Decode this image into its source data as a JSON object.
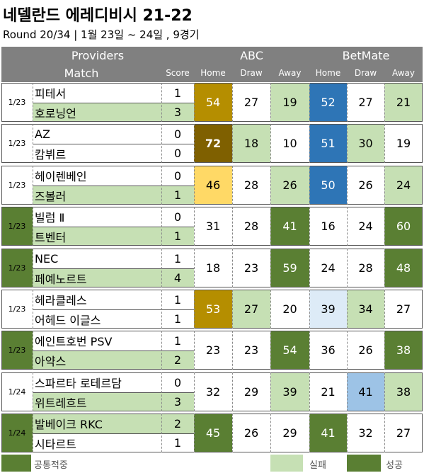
{
  "title": "네델란드 에레디비시 21-22",
  "subtitle": "Round 20/34 | 1월 23일 ~ 24일 , 9경기",
  "colors": {
    "success": "#5a7f33",
    "fail": "#c6e0b4",
    "header": "#808080",
    "goldDark": "#b58e00",
    "brownDark": "#7f6000",
    "gold": "#ffd966",
    "blue": "#2e75b6",
    "blueLight": "#9dc3e6",
    "blueLighter": "#ddebf7"
  },
  "header": {
    "providers": "Providers",
    "match": "Match",
    "score": "Score",
    "abc": "ABC",
    "betmate": "BetMate",
    "home": "Home",
    "draw": "Draw",
    "away": "Away"
  },
  "matches": [
    {
      "date": "1/23",
      "dateStyle": "none",
      "home": "피테서",
      "away": "호로닝언",
      "homeScore": "1",
      "awayScore": "3",
      "homeTeamStyle": "none",
      "awayTeamStyle": "fail",
      "abc": [
        {
          "v": "54",
          "s": "goldDark"
        },
        {
          "v": "27",
          "s": "none"
        },
        {
          "v": "19",
          "s": "fail"
        }
      ],
      "bm": [
        {
          "v": "52",
          "s": "blue"
        },
        {
          "v": "27",
          "s": "none"
        },
        {
          "v": "21",
          "s": "fail"
        }
      ]
    },
    {
      "date": "1/23",
      "dateStyle": "none",
      "home": "AZ",
      "away": "캄뷔르",
      "homeScore": "0",
      "awayScore": "0",
      "homeTeamStyle": "none",
      "awayTeamStyle": "none",
      "abc": [
        {
          "v": "72",
          "s": "brownDark"
        },
        {
          "v": "18",
          "s": "fail"
        },
        {
          "v": "10",
          "s": "none"
        }
      ],
      "bm": [
        {
          "v": "51",
          "s": "blue"
        },
        {
          "v": "30",
          "s": "fail"
        },
        {
          "v": "19",
          "s": "none"
        }
      ]
    },
    {
      "date": "1/23",
      "dateStyle": "none",
      "home": "헤이렌베인",
      "away": "즈볼러",
      "homeScore": "0",
      "awayScore": "1",
      "homeTeamStyle": "none",
      "awayTeamStyle": "fail",
      "abc": [
        {
          "v": "46",
          "s": "gold"
        },
        {
          "v": "28",
          "s": "none"
        },
        {
          "v": "26",
          "s": "fail"
        }
      ],
      "bm": [
        {
          "v": "50",
          "s": "blue"
        },
        {
          "v": "26",
          "s": "none"
        },
        {
          "v": "24",
          "s": "fail"
        }
      ]
    },
    {
      "date": "1/23",
      "dateStyle": "success",
      "home": "빌럼 Ⅱ",
      "away": "트벤터",
      "homeScore": "0",
      "awayScore": "1",
      "homeTeamStyle": "none",
      "awayTeamStyle": "fail",
      "abc": [
        {
          "v": "31",
          "s": "none"
        },
        {
          "v": "28",
          "s": "none"
        },
        {
          "v": "41",
          "s": "success"
        }
      ],
      "bm": [
        {
          "v": "16",
          "s": "none"
        },
        {
          "v": "24",
          "s": "none"
        },
        {
          "v": "60",
          "s": "success"
        }
      ]
    },
    {
      "date": "1/23",
      "dateStyle": "success",
      "home": "NEC",
      "away": "페예노르트",
      "homeScore": "1",
      "awayScore": "4",
      "homeTeamStyle": "none",
      "awayTeamStyle": "fail",
      "abc": [
        {
          "v": "18",
          "s": "none"
        },
        {
          "v": "23",
          "s": "none"
        },
        {
          "v": "59",
          "s": "success"
        }
      ],
      "bm": [
        {
          "v": "24",
          "s": "none"
        },
        {
          "v": "28",
          "s": "none"
        },
        {
          "v": "48",
          "s": "success"
        }
      ]
    },
    {
      "date": "1/23",
      "dateStyle": "none",
      "home": "헤라클레스",
      "away": "어헤드 이글스",
      "homeScore": "1",
      "awayScore": "1",
      "homeTeamStyle": "none",
      "awayTeamStyle": "none",
      "abc": [
        {
          "v": "53",
          "s": "goldDark"
        },
        {
          "v": "27",
          "s": "fail"
        },
        {
          "v": "20",
          "s": "none"
        }
      ],
      "bm": [
        {
          "v": "39",
          "s": "blueLighter"
        },
        {
          "v": "34",
          "s": "fail"
        },
        {
          "v": "27",
          "s": "none"
        }
      ]
    },
    {
      "date": "1/23",
      "dateStyle": "success",
      "home": "에인트호번 PSV",
      "away": "아약스",
      "homeScore": "1",
      "awayScore": "2",
      "homeTeamStyle": "none",
      "awayTeamStyle": "fail",
      "abc": [
        {
          "v": "23",
          "s": "none"
        },
        {
          "v": "23",
          "s": "none"
        },
        {
          "v": "54",
          "s": "success"
        }
      ],
      "bm": [
        {
          "v": "36",
          "s": "none"
        },
        {
          "v": "26",
          "s": "none"
        },
        {
          "v": "38",
          "s": "success"
        }
      ]
    },
    {
      "date": "1/24",
      "dateStyle": "none",
      "home": "스파르타 로테르담",
      "away": "위트레흐트",
      "homeScore": "0",
      "awayScore": "3",
      "homeTeamStyle": "none",
      "awayTeamStyle": "fail",
      "abc": [
        {
          "v": "32",
          "s": "none"
        },
        {
          "v": "29",
          "s": "none"
        },
        {
          "v": "39",
          "s": "fail"
        }
      ],
      "bm": [
        {
          "v": "21",
          "s": "none"
        },
        {
          "v": "41",
          "s": "blueLight"
        },
        {
          "v": "38",
          "s": "fail"
        }
      ]
    },
    {
      "date": "1/24",
      "dateStyle": "success",
      "home": "발베이크 RKC",
      "away": "시타르트",
      "homeScore": "2",
      "awayScore": "1",
      "homeTeamStyle": "fail",
      "awayTeamStyle": "none",
      "abc": [
        {
          "v": "45",
          "s": "success"
        },
        {
          "v": "26",
          "s": "none"
        },
        {
          "v": "29",
          "s": "none"
        }
      ],
      "bm": [
        {
          "v": "41",
          "s": "success"
        },
        {
          "v": "32",
          "s": "none"
        },
        {
          "v": "27",
          "s": "none"
        }
      ]
    }
  ],
  "legend": {
    "common": "공통적중",
    "fail": "실패",
    "success": "성공"
  }
}
